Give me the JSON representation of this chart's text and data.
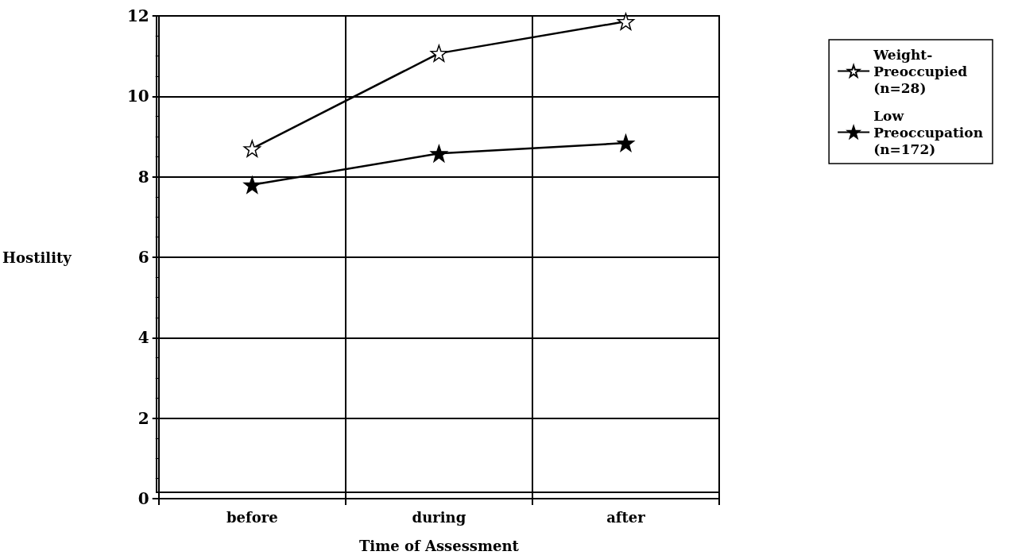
{
  "chart_data": {
    "type": "line",
    "xlabel": "Time of Assessment",
    "ylabel": "Hostility",
    "categories": [
      "before",
      "during",
      "after"
    ],
    "series": [
      {
        "name": "Weight-\nPreoccupied\n(n=28)",
        "color": "#000000",
        "values": [
          8.7,
          11.07,
          11.86
        ]
      },
      {
        "name": "Low\nPreoccupation\n(n=172)",
        "color": "#000000",
        "values": [
          7.8,
          8.58,
          8.84
        ]
      }
    ],
    "ylim": [
      0,
      12
    ],
    "yticks": [
      0,
      2,
      4,
      6,
      8,
      10,
      12
    ],
    "grid": true,
    "legend": "right",
    "marker": "star",
    "line_style": "solid"
  }
}
